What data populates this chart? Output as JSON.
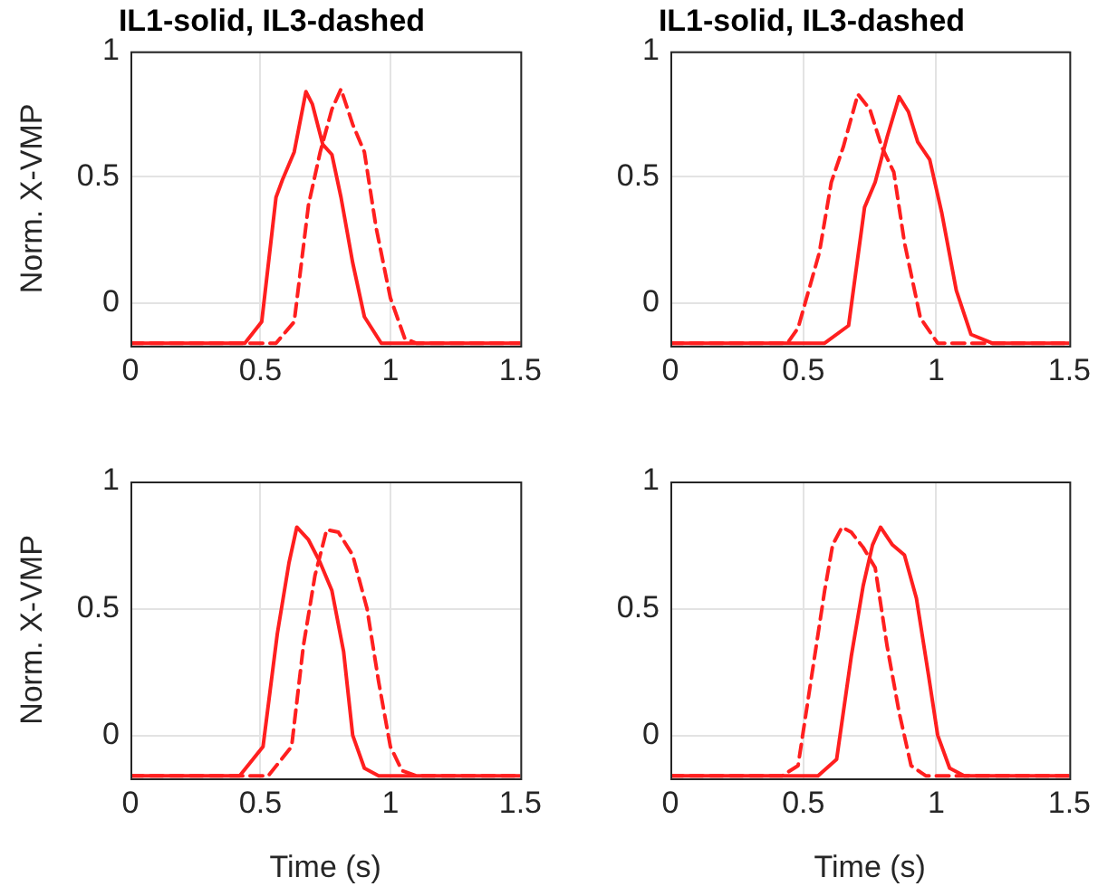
{
  "chart_data": [
    {
      "type": "line",
      "title": "IL1-solid, IL3-dashed",
      "ylabel": "Norm. X-VMP",
      "xlim": [
        0,
        1.5
      ],
      "xticks": [
        0,
        0.5,
        1,
        1.5
      ],
      "ylim": [
        -0.17,
        1
      ],
      "yticks": [
        0,
        0.5,
        1
      ],
      "grid": true,
      "legend": false,
      "marker": "none",
      "series": [
        {
          "color": "#ff1f1f",
          "line_style": "solid",
          "x": [
            0,
            0.44,
            0.505,
            0.56,
            0.585,
            0.63,
            0.675,
            0.7,
            0.74,
            0.775,
            0.81,
            0.855,
            0.9,
            0.965,
            1.5
          ],
          "values": [
            -0.16,
            -0.16,
            -0.075,
            0.42,
            0.49,
            0.6,
            0.84,
            0.79,
            0.63,
            0.59,
            0.42,
            0.16,
            -0.055,
            -0.16,
            -0.16
          ]
        },
        {
          "color": "#ff1f1f",
          "line_style": "dashed",
          "x": [
            0,
            0.56,
            0.63,
            0.685,
            0.73,
            0.775,
            0.81,
            0.855,
            0.9,
            0.945,
            1.0,
            1.055,
            1.1,
            1.5
          ],
          "values": [
            -0.16,
            -0.16,
            -0.075,
            0.39,
            0.6,
            0.77,
            0.85,
            0.71,
            0.6,
            0.3,
            0.02,
            -0.14,
            -0.16,
            -0.16
          ]
        }
      ]
    },
    {
      "type": "line",
      "title": "IL1-solid, IL3-dashed",
      "xlim": [
        0,
        1.5
      ],
      "xticks": [
        0,
        0.5,
        1,
        1.5
      ],
      "ylim": [
        -0.17,
        1
      ],
      "yticks": [
        0,
        0.5,
        1
      ],
      "grid": true,
      "legend": false,
      "marker": "none",
      "series": [
        {
          "color": "#ff1f1f",
          "line_style": "solid",
          "x": [
            0,
            0.58,
            0.67,
            0.73,
            0.77,
            0.815,
            0.86,
            0.895,
            0.93,
            0.975,
            1.02,
            1.075,
            1.13,
            1.21,
            1.5
          ],
          "values": [
            -0.16,
            -0.16,
            -0.09,
            0.38,
            0.48,
            0.66,
            0.82,
            0.76,
            0.64,
            0.57,
            0.36,
            0.05,
            -0.125,
            -0.16,
            -0.16
          ]
        },
        {
          "color": "#ff1f1f",
          "line_style": "dashed",
          "x": [
            0,
            0.44,
            0.48,
            0.56,
            0.605,
            0.65,
            0.705,
            0.75,
            0.795,
            0.84,
            0.88,
            0.94,
            1.005,
            1.5
          ],
          "values": [
            -0.16,
            -0.16,
            -0.1,
            0.2,
            0.48,
            0.62,
            0.83,
            0.77,
            0.62,
            0.52,
            0.24,
            -0.06,
            -0.16,
            -0.16
          ]
        }
      ]
    },
    {
      "type": "line",
      "xlabel": "Time (s)",
      "ylabel": "Norm. X-VMP",
      "xlim": [
        0,
        1.5
      ],
      "xticks": [
        0,
        0.5,
        1,
        1.5
      ],
      "ylim": [
        -0.17,
        1
      ],
      "yticks": [
        0,
        0.5,
        1
      ],
      "grid": true,
      "legend": false,
      "marker": "none",
      "series": [
        {
          "color": "#ff1f1f",
          "line_style": "solid",
          "x": [
            0,
            0.42,
            0.51,
            0.565,
            0.61,
            0.64,
            0.685,
            0.73,
            0.775,
            0.82,
            0.855,
            0.9,
            0.955,
            1.5
          ],
          "values": [
            -0.16,
            -0.16,
            -0.045,
            0.4,
            0.68,
            0.82,
            0.77,
            0.68,
            0.57,
            0.33,
            0,
            -0.13,
            -0.16,
            -0.16
          ]
        },
        {
          "color": "#ff1f1f",
          "line_style": "dashed",
          "x": [
            0,
            0.53,
            0.62,
            0.665,
            0.71,
            0.755,
            0.8,
            0.855,
            0.91,
            0.955,
            1.0,
            1.045,
            1.1,
            1.5
          ],
          "values": [
            -0.16,
            -0.16,
            -0.045,
            0.35,
            0.63,
            0.81,
            0.8,
            0.71,
            0.5,
            0.21,
            -0.045,
            -0.14,
            -0.16,
            -0.16
          ]
        }
      ]
    },
    {
      "type": "line",
      "xlabel": "Time (s)",
      "xlim": [
        0,
        1.5
      ],
      "xticks": [
        0,
        0.5,
        1,
        1.5
      ],
      "ylim": [
        -0.17,
        1
      ],
      "yticks": [
        0,
        0.5,
        1
      ],
      "grid": true,
      "legend": false,
      "marker": "none",
      "series": [
        {
          "color": "#ff1f1f",
          "line_style": "solid",
          "x": [
            0,
            0.555,
            0.625,
            0.68,
            0.725,
            0.76,
            0.79,
            0.835,
            0.88,
            0.925,
            0.97,
            1.005,
            1.05,
            1.105,
            1.5
          ],
          "values": [
            -0.16,
            -0.16,
            -0.095,
            0.31,
            0.59,
            0.75,
            0.82,
            0.75,
            0.71,
            0.54,
            0.24,
            0,
            -0.13,
            -0.16,
            -0.16
          ]
        },
        {
          "color": "#ff1f1f",
          "line_style": "dashed",
          "x": [
            0,
            0.42,
            0.48,
            0.535,
            0.58,
            0.61,
            0.645,
            0.68,
            0.725,
            0.77,
            0.815,
            0.86,
            0.905,
            0.96,
            1.5
          ],
          "values": [
            -0.16,
            -0.16,
            -0.12,
            0.26,
            0.57,
            0.75,
            0.82,
            0.8,
            0.74,
            0.66,
            0.35,
            0.09,
            -0.12,
            -0.16,
            -0.16
          ]
        }
      ]
    }
  ]
}
